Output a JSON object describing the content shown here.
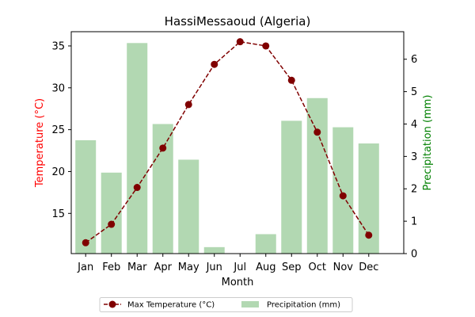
{
  "chart_data": {
    "type": "bar",
    "title": "HassiMessaoud (Algeria)",
    "xlabel": "Month",
    "categories": [
      "Jan",
      "Feb",
      "Mar",
      "Apr",
      "May",
      "Jun",
      "Jul",
      "Aug",
      "Sep",
      "Oct",
      "Nov",
      "Dec"
    ],
    "y_left": {
      "label": "Temperature (°C)",
      "range": [
        10.2,
        36.7
      ],
      "ticks": [
        15,
        20,
        25,
        30,
        35
      ],
      "color": "#ff0000"
    },
    "y_right": {
      "label": "Precipitation (mm)",
      "range": [
        0,
        6.85
      ],
      "ticks": [
        0,
        1,
        2,
        3,
        4,
        5,
        6
      ],
      "color": "#008000"
    },
    "series": [
      {
        "name": "Max Temperature (°C)",
        "kind": "line",
        "axis": "left",
        "color": "#800000",
        "linestyle": "dashed",
        "marker": "circle",
        "values": [
          11.5,
          13.7,
          18.1,
          22.8,
          28.0,
          32.8,
          35.5,
          35.0,
          30.9,
          24.7,
          17.1,
          12.4
        ]
      },
      {
        "name": "Precipitation (mm)",
        "kind": "bar",
        "axis": "right",
        "color": "#b2d8b2",
        "values": [
          3.5,
          2.5,
          6.5,
          4.0,
          2.9,
          0.2,
          0.0,
          0.6,
          4.1,
          4.8,
          3.9,
          3.4
        ]
      }
    ],
    "legend_position": "bottom-center",
    "grid": false
  }
}
